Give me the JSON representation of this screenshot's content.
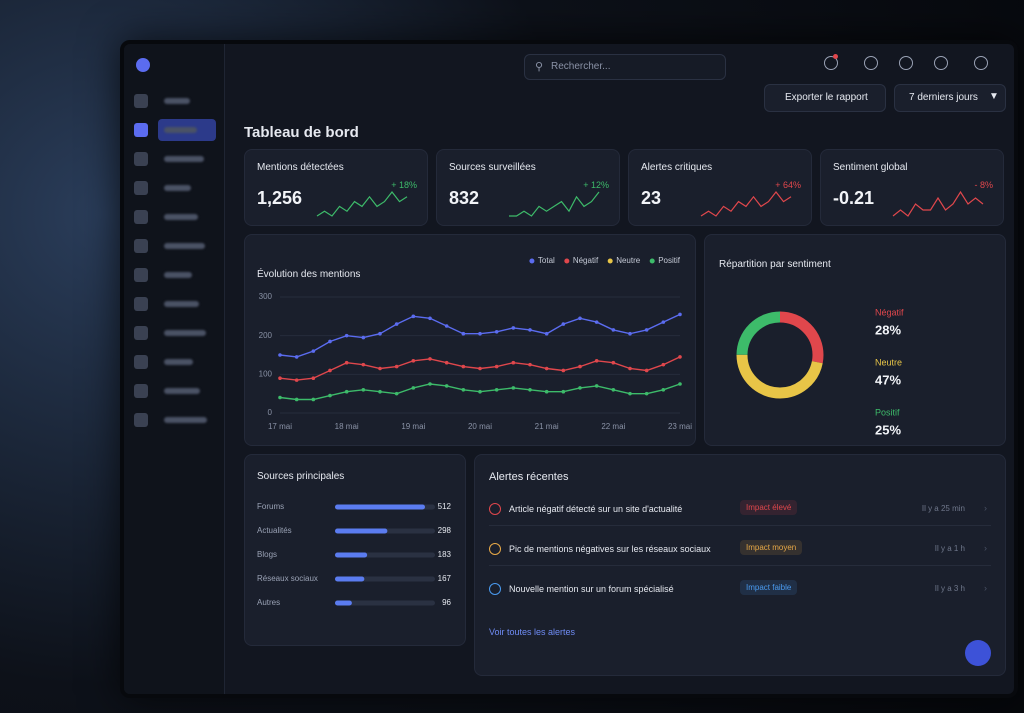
{
  "search_placeholder": "Rechercher...",
  "export_button": "Exporter le rapport",
  "period": "7 derniers jours",
  "page_title": "Tableau de bord",
  "kpis": [
    {
      "label": "Mentions détectées",
      "value": "1,256",
      "change": "+ 18%",
      "color": "#3dbb6a",
      "trend": [
        3,
        4,
        3,
        5,
        4,
        6,
        5,
        7,
        5,
        6,
        8,
        6,
        7
      ]
    },
    {
      "label": "Sources surveillées",
      "value": "832",
      "change": "+ 12%",
      "color": "#3dbb6a",
      "trend": [
        3,
        3,
        4,
        3,
        5,
        4,
        5,
        6,
        4,
        7,
        5,
        6,
        8
      ]
    },
    {
      "label": "Alertes critiques",
      "value": "23",
      "change": "+ 64%",
      "color": "#e0474c",
      "trend": [
        2,
        3,
        2,
        4,
        3,
        5,
        4,
        6,
        4,
        5,
        7,
        5,
        6
      ]
    },
    {
      "label": "Sentiment global",
      "value": "-0.21",
      "change": "- 8%",
      "color": "#e0474c",
      "trend": [
        3,
        4,
        3,
        5,
        4,
        4,
        6,
        4,
        5,
        7,
        5,
        6,
        5
      ]
    }
  ],
  "chart_data": [
    {
      "type": "line",
      "title": "Évolution des mentions",
      "categories": [
        "17 mai",
        null,
        null,
        null,
        "18 mai",
        null,
        null,
        null,
        "19 mai",
        null,
        null,
        null,
        "20 mai",
        null,
        null,
        null,
        "21 mai",
        null,
        null,
        null,
        "22 mai",
        null,
        null,
        null,
        "23 mai"
      ],
      "series": [
        {
          "name": "Total",
          "color": "#5b6cf0",
          "values": [
            150,
            145,
            160,
            185,
            200,
            195,
            205,
            230,
            250,
            245,
            225,
            205,
            205,
            210,
            220,
            215,
            205,
            230,
            245,
            235,
            215,
            205,
            215,
            235,
            255
          ]
        },
        {
          "name": "Négatif",
          "color": "#e0474c",
          "values": [
            90,
            85,
            90,
            110,
            130,
            125,
            115,
            120,
            135,
            140,
            130,
            120,
            115,
            120,
            130,
            125,
            115,
            110,
            120,
            135,
            130,
            115,
            110,
            125,
            145
          ]
        },
        {
          "name": "Neutre",
          "color": "#e8c547",
          "values": [
            null,
            null,
            null,
            null,
            null,
            null,
            null,
            null,
            null,
            null,
            null,
            null,
            null,
            null,
            null,
            null,
            null,
            null,
            null,
            null,
            null,
            null,
            null,
            null,
            null
          ]
        },
        {
          "name": "Positif",
          "color": "#3dbb6a",
          "values": [
            40,
            35,
            35,
            45,
            55,
            60,
            55,
            50,
            65,
            75,
            70,
            60,
            55,
            60,
            65,
            60,
            55,
            55,
            65,
            70,
            60,
            50,
            50,
            60,
            75
          ]
        }
      ],
      "ylim": [
        0,
        300
      ],
      "yticks": [
        0,
        100,
        200,
        300
      ],
      "grid": true,
      "legend": "top-right"
    },
    {
      "type": "pie",
      "title": "Répartition par sentiment",
      "donut": true,
      "categories": [
        "Négatif",
        "Neutre",
        "Positif"
      ],
      "values": [
        28,
        47,
        25
      ],
      "value_labels": [
        "28%",
        "47%",
        "25%"
      ],
      "colors": [
        "#e0474c",
        "#e8c547",
        "#3dbb6a"
      ]
    },
    {
      "type": "bar",
      "orientation": "horizontal",
      "title": "Sources principales",
      "categories": [
        "Forums",
        "Actualités",
        "Blogs",
        "Réseaux sociaux",
        "Autres"
      ],
      "values": [
        512,
        298,
        183,
        167,
        96
      ],
      "color": "#5b7cf0"
    }
  ],
  "alerts": {
    "title": "Alertes récentes",
    "items": [
      {
        "text": "Article négatif détecté sur un site d'actualité",
        "impact": "Impact élevé",
        "time": "Il y a 25 min",
        "color": "#e0474c"
      },
      {
        "text": "Pic de mentions négatives sur les réseaux sociaux",
        "impact": "Impact moyen",
        "time": "Il y a 1 h",
        "color": "#e8a947"
      },
      {
        "text": "Nouvelle mention sur un forum spécialisé",
        "impact": "Impact faible",
        "time": "Il y a 3 h",
        "color": "#4a9bf0"
      }
    ],
    "link": "Voir toutes les alertes"
  }
}
